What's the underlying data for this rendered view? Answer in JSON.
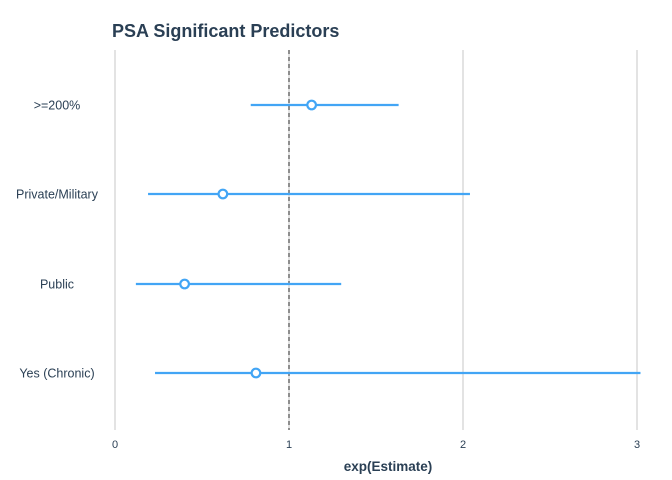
{
  "chart_data": {
    "type": "scatter",
    "title": "PSA Significant Predictors",
    "xlabel": "exp(Estimate)",
    "ylabel": "",
    "xlim": [
      0,
      3
    ],
    "x_ticks": [
      "0",
      "1",
      "2",
      "3"
    ],
    "reference_line_x": 1,
    "grid": "vertical",
    "color": "#42a5f5",
    "categories": [
      ">=200%",
      "Private/Military",
      "Public",
      "Yes (Chronic)"
    ],
    "estimate": [
      1.13,
      0.62,
      0.4,
      0.81
    ],
    "lower": [
      0.78,
      0.19,
      0.12,
      0.23
    ],
    "upper": [
      1.63,
      2.04,
      1.3,
      3.02
    ]
  }
}
